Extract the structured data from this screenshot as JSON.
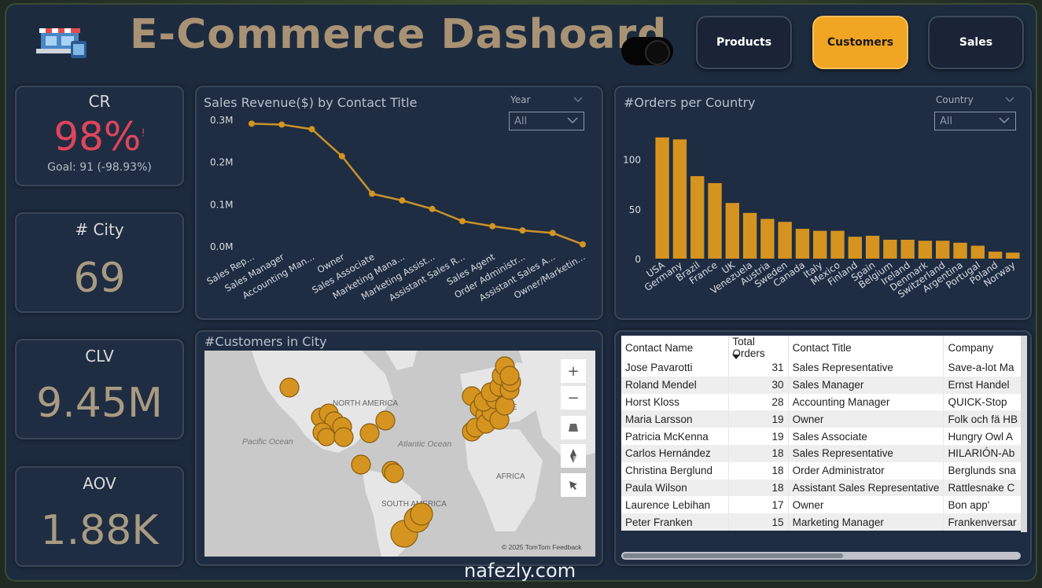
{
  "header": {
    "title": "E-Commerce Dashoard",
    "nav": [
      {
        "label": "Products",
        "active": false
      },
      {
        "label": "Customers",
        "active": true
      },
      {
        "label": "Sales",
        "active": false
      }
    ]
  },
  "kpis": {
    "cr": {
      "title": "CR",
      "value": "98%",
      "flag": "!",
      "goal": "Goal: 91 (-98.93%)"
    },
    "city": {
      "title": "# City",
      "value": "69"
    },
    "clv": {
      "title": "CLV",
      "value": "9.45M"
    },
    "aov": {
      "title": "AOV",
      "value": "1.88K"
    }
  },
  "revenue_chart": {
    "title": "Sales Revenue($) by Contact Title",
    "slicer_label": "Year",
    "slicer_value": "All"
  },
  "orders_chart": {
    "title": "#Orders per Country",
    "slicer_label": "Country",
    "slicer_value": "All"
  },
  "map": {
    "title": "#Customers in City",
    "labels": {
      "pacific": "Pacific Ocean",
      "atlantic": "Atlantic Ocean",
      "north_america": "NORTH AMERICA",
      "south_america": "SOUTH AMERICA",
      "africa": "AFRICA",
      "europe": "PE"
    },
    "attribution": "© 2025 TomTom  Feedback",
    "controls": [
      "plus-icon",
      "minus-icon",
      "tilt-icon",
      "compass-icon",
      "select-icon"
    ]
  },
  "table": {
    "columns": [
      "Contact Name",
      "Total Orders",
      "Contact Title",
      "Company"
    ],
    "rows": [
      [
        "Jose Pavarotti",
        "31",
        "Sales Representative",
        "Save-a-lot Ma"
      ],
      [
        "Roland Mendel",
        "30",
        "Sales Manager",
        "Ernst Handel"
      ],
      [
        "Horst Kloss",
        "28",
        "Accounting Manager",
        "QUICK-Stop"
      ],
      [
        "Maria Larsson",
        "19",
        "Owner",
        "Folk och fä HB"
      ],
      [
        "Patricia McKenna",
        "19",
        "Sales Associate",
        "Hungry Owl A"
      ],
      [
        "Carlos Hernández",
        "18",
        "Sales Representative",
        "HILARIÓN-Ab"
      ],
      [
        "Christina Berglund",
        "18",
        "Order Administrator",
        "Berglunds sna"
      ],
      [
        "Paula Wilson",
        "18",
        "Assistant Sales Representative",
        "Rattlesnake C"
      ],
      [
        "Laurence Lebihan",
        "17",
        "Owner",
        "Bon app'"
      ],
      [
        "Peter Franken",
        "15",
        "Marketing Manager",
        "Frankenversar"
      ]
    ]
  },
  "watermark": "nafezly.com",
  "colors": {
    "background": "#1d2b3f",
    "accent": "#f0a523",
    "bar": "#d4941f",
    "line": "#c8922a",
    "cr_value": "#e0455b",
    "kpi_value": "#a89b82"
  },
  "chart_data": [
    {
      "type": "line",
      "title": "Sales Revenue($) by Contact Title",
      "categories": [
        "Sales Rep...",
        "Sales Manager",
        "Accounting Man...",
        "Owner",
        "Sales Associate",
        "Marketing Mana...",
        "Marketing Assist...",
        "Assistant Sales R...",
        "Sales Agent",
        "Order Administr...",
        "Assistant Sales A...",
        "Owner/Marketin..."
      ],
      "values": [
        0.29,
        0.288,
        0.277,
        0.213,
        0.124,
        0.108,
        0.088,
        0.059,
        0.047,
        0.037,
        0.031,
        0.004
      ],
      "value_unit": "M",
      "yticks": [
        "0.0M",
        "0.1M",
        "0.2M",
        "0.3M"
      ],
      "ylim": [
        0,
        0.3
      ],
      "grid": false
    },
    {
      "type": "bar",
      "title": "#Orders per Country",
      "categories": [
        "USA",
        "Germany",
        "Brazil",
        "France",
        "UK",
        "Venezuela",
        "Austria",
        "Sweden",
        "Canada",
        "Italy",
        "Mexico",
        "Finland",
        "Spain",
        "Belgium",
        "Ireland",
        "Denmark",
        "Switzerland",
        "Argentina",
        "Portugal",
        "Poland",
        "Norway"
      ],
      "values": [
        122,
        120,
        83,
        76,
        56,
        46,
        40,
        37,
        30,
        28,
        28,
        22,
        23,
        19,
        19,
        18,
        18,
        16,
        13,
        7,
        6
      ],
      "yticks": [
        0,
        50,
        100
      ],
      "ylim": [
        0,
        125
      ],
      "grid": false
    }
  ]
}
